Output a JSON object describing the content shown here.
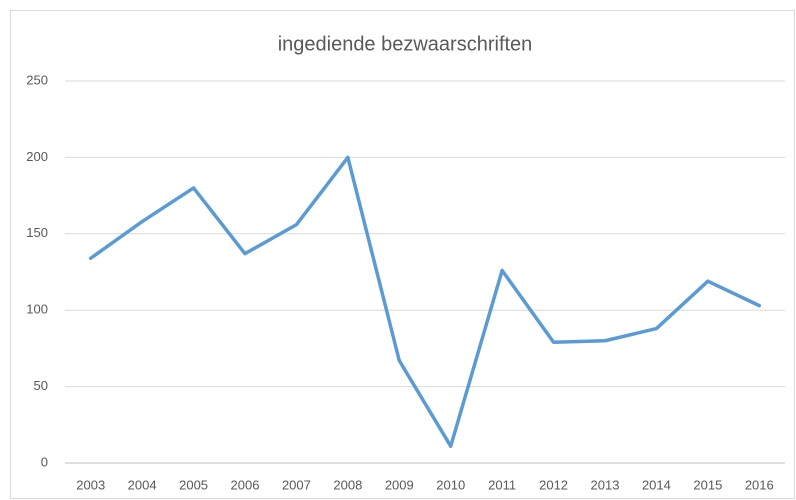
{
  "chart_data": {
    "type": "line",
    "title": "ingediende bezwaarschriften",
    "categories": [
      "2003",
      "2004",
      "2005",
      "2006",
      "2007",
      "2008",
      "2009",
      "2010",
      "2011",
      "2012",
      "2013",
      "2014",
      "2015",
      "2016"
    ],
    "values": [
      134,
      158,
      180,
      137,
      156,
      200,
      67,
      11,
      126,
      79,
      80,
      88,
      119,
      103
    ],
    "color": "#5b9bd5",
    "ylim": [
      0,
      250
    ],
    "yticks": [
      0,
      50,
      100,
      150,
      200,
      250
    ],
    "grid": true
  }
}
